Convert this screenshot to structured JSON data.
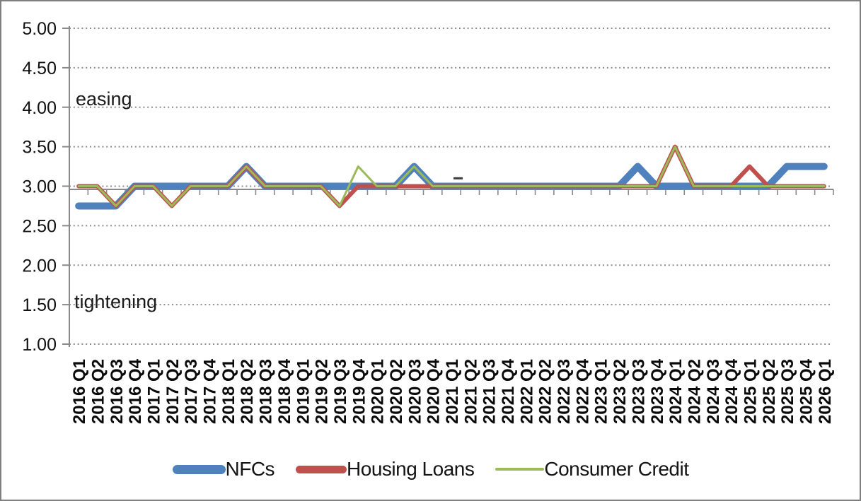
{
  "y_axis": {
    "tick_labels": [
      "5.00",
      "4.50",
      "4.00",
      "3.50",
      "3.00",
      "2.50",
      "2.00",
      "1.50",
      "1.00"
    ],
    "min": 1.0,
    "max": 5.0,
    "step": 0.5
  },
  "annotations": {
    "easing": "easing",
    "tightening": "tightening",
    "dash_marker": {
      "category_index": 20,
      "value": 3.1
    }
  },
  "legend": {
    "items": [
      {
        "label": "NFCs",
        "color": "#4F81BD"
      },
      {
        "label": "Housing Loans",
        "color": "#C0504D"
      },
      {
        "label": "Consumer Credit",
        "color": "#9BBB59"
      }
    ]
  },
  "chart_data": {
    "type": "line",
    "title": "",
    "xlabel": "",
    "ylabel": "",
    "ylim": [
      1.0,
      5.0
    ],
    "grid": true,
    "legend_position": "bottom",
    "categories": [
      "2016 Q1",
      "2016 Q2",
      "2016 Q3",
      "2016 Q4",
      "2017 Q1",
      "2017 Q2",
      "2017 Q3",
      "2017 Q4",
      "2018 Q1",
      "2018 Q2",
      "2018 Q3",
      "2018 Q4",
      "2019 Q1",
      "2019 Q2",
      "2019 Q3",
      "2019 Q4",
      "2020 Q1",
      "2020 Q2",
      "2020 Q3",
      "2020 Q4",
      "2021 Q1",
      "2021 Q2",
      "2021 Q3",
      "2021 Q4",
      "2022 Q1",
      "2022 Q2",
      "2022 Q3",
      "2022 Q4",
      "2023 Q1",
      "2023 Q2",
      "2023 Q3",
      "2023 Q4",
      "2024 Q1",
      "2024 Q2",
      "2024 Q3",
      "2024 Q4",
      "2025 Q1",
      "2025 Q2",
      "2025 Q3",
      "2025 Q4",
      "2026 Q1"
    ],
    "series": [
      {
        "name": "NFCs",
        "color": "#4F81BD",
        "stroke_width": 10,
        "values": [
          2.75,
          2.75,
          2.75,
          3.0,
          3.0,
          3.0,
          3.0,
          3.0,
          3.0,
          3.25,
          3.0,
          3.0,
          3.0,
          3.0,
          3.0,
          3.0,
          3.0,
          3.0,
          3.25,
          3.0,
          3.0,
          3.0,
          3.0,
          3.0,
          3.0,
          3.0,
          3.0,
          3.0,
          3.0,
          3.0,
          3.25,
          3.0,
          3.0,
          3.0,
          3.0,
          3.0,
          3.0,
          3.0,
          3.25,
          3.25,
          3.25
        ]
      },
      {
        "name": "Housing Loans",
        "color": "#C0504D",
        "stroke_width": 6,
        "values": [
          3.0,
          3.0,
          2.75,
          3.0,
          3.0,
          2.75,
          3.0,
          3.0,
          3.0,
          3.25,
          3.0,
          3.0,
          3.0,
          3.0,
          2.75,
          3.0,
          3.0,
          3.0,
          3.0,
          3.0,
          3.0,
          3.0,
          3.0,
          3.0,
          3.0,
          3.0,
          3.0,
          3.0,
          3.0,
          3.0,
          3.0,
          3.0,
          3.5,
          3.0,
          3.0,
          3.0,
          3.25,
          3.0,
          3.0,
          3.0,
          3.0
        ]
      },
      {
        "name": "Consumer Credit",
        "color": "#9BBB59",
        "stroke_width": 3,
        "values": [
          3.0,
          3.0,
          2.75,
          3.0,
          3.0,
          2.75,
          3.0,
          3.0,
          3.0,
          3.25,
          3.0,
          3.0,
          3.0,
          3.0,
          2.75,
          3.25,
          3.0,
          3.0,
          3.25,
          3.0,
          3.0,
          3.0,
          3.0,
          3.0,
          3.0,
          3.0,
          3.0,
          3.0,
          3.0,
          3.0,
          3.0,
          3.0,
          3.5,
          3.0,
          3.0,
          3.0,
          3.0,
          3.0,
          3.0,
          3.0,
          3.0
        ]
      }
    ]
  }
}
